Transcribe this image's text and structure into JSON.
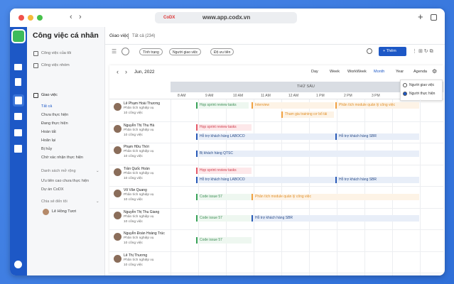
{
  "browser": {
    "logo": "CoDX",
    "url": "www.app.codx.vn"
  },
  "sidebar": {
    "title": "Công việc cá nhân",
    "items": [
      "Công việc của tôi",
      "Công việc nhóm"
    ],
    "section": "Giao việc",
    "filters": [
      "Tất cả",
      "Chưa thực hiện",
      "Đang thực hiện",
      "Hoàn tất",
      "Hoãn lại",
      "Bị hủy",
      "Chờ xác nhận thực hiện"
    ],
    "extended": {
      "title": "Danh sách mở rộng",
      "items": [
        "Ưu tiên cao chưa thực hiện",
        "Dự án CoDX"
      ]
    },
    "shared": {
      "title": "Chia sẻ đến tôi",
      "user": "Lê Hồng Tươi"
    }
  },
  "header": {
    "title": "Giao việc",
    "subtitle": "Tất cả (234)",
    "filters": [
      "Tình trạng",
      "Người giao việc",
      "Độ ưu tiên"
    ],
    "add_button": "+ Thêm"
  },
  "calendar": {
    "month": "Jun, 2022",
    "views": [
      "Day",
      "Week",
      "WorkWeek",
      "Month",
      "Year",
      "Agenda"
    ],
    "assignee_options": [
      "Người giao việc",
      "Người thực hiện"
    ],
    "day": "THỨ SÁU",
    "hours": [
      "8 AM",
      "9 AM",
      "10 AM",
      "11 AM",
      "12 AM",
      "1 PM",
      "2 PM",
      "3 PM"
    ],
    "rows": [
      {
        "name": "Lê Phạm Hoài Thương",
        "role": "Phân tích nghiệp vụ",
        "count": "10 công việc",
        "events": [
          "Họp sprint review tasks",
          "Interview",
          "Phân tích module quản lý công việc",
          "Tham gia training cơ bổ tải"
        ]
      },
      {
        "name": "Nguyễn Thị Thu Hà",
        "role": "Phân tích nghiệp vụ",
        "count": "10 công việc",
        "events": [
          "Họp sprint review tasks",
          "Hỗ trợ khách hàng LABOCO",
          "Hỗ trợ khách hàng SBR"
        ]
      },
      {
        "name": "Phạm Hữu Thời",
        "role": "Phân tích nghiệp vụ",
        "count": "10 công việc",
        "events": [
          "Bị khách hàng QTSC"
        ]
      },
      {
        "name": "Trần Quốc Hoàn",
        "role": "Phân tích nghiệp vụ",
        "count": "10 công việc",
        "events": [
          "Họp sprint review tasks",
          "Hỗ trợ khách hàng LABOCO",
          "Hỗ trợ khách hàng SBR"
        ]
      },
      {
        "name": "Võ Văn Quang",
        "role": "Phân tích nghiệp vụ",
        "count": "10 công việc",
        "events": [
          "Code issue 57",
          "Phân tích module quản lý công việc"
        ]
      },
      {
        "name": "Nguyễn Thị Thu Giang",
        "role": "Phân tích nghiệp vụ",
        "count": "10 công việc",
        "events": [
          "Code issue 57",
          "Hỗ trợ khách hàng SBR"
        ]
      },
      {
        "name": "Nguyễn Đoàn Hoàng Trúc",
        "role": "Phân tích nghiệp vụ",
        "count": "10 công việc",
        "events": [
          "Code issue 57"
        ]
      },
      {
        "name": "Lê Thị Thương",
        "role": "Phân tích nghiệp vụ",
        "count": "10 công việc",
        "events": []
      }
    ]
  }
}
